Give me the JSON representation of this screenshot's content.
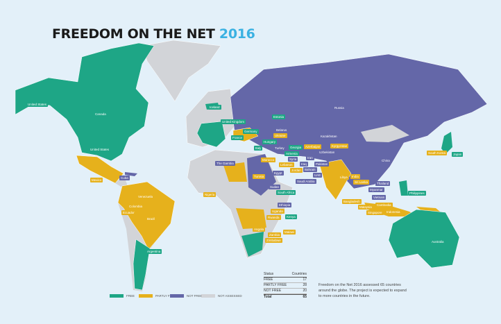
{
  "title": {
    "main": "FREEDOM ON THE NET",
    "year": "2016"
  },
  "colors": {
    "free": "#1ea686",
    "partly_free": "#e6b11c",
    "not_free": "#6467a8",
    "not_assessed": "#d2d4d8",
    "ocean": "#e3f0f9",
    "year": "#3ab1e2"
  },
  "legend": [
    {
      "key": "free",
      "label": "FREE"
    },
    {
      "key": "partly_free",
      "label": "PARTLY FREE"
    },
    {
      "key": "not_free",
      "label": "NOT FREE"
    },
    {
      "key": "not_assessed",
      "label": "NOT ASSESSED"
    }
  ],
  "stats": {
    "header": {
      "status": "Status",
      "countries": "Countries"
    },
    "rows": [
      {
        "status": "FREE",
        "count": "17"
      },
      {
        "status": "PARTLY FREE",
        "count": "28"
      },
      {
        "status": "NOT FREE",
        "count": "20"
      }
    ],
    "total": {
      "status": "Total",
      "count": "65"
    }
  },
  "note": "Freedom on the Net 2016 assessed 65 countries around the globe. The project is expected to expand to more countries in the future.",
  "countries": [
    {
      "name": "United States",
      "status": "free"
    },
    {
      "name": "Canada",
      "status": "free"
    },
    {
      "name": "United States",
      "status": "free"
    },
    {
      "name": "Iceland",
      "status": "free"
    },
    {
      "name": "United Kingdom",
      "status": "free"
    },
    {
      "name": "France",
      "status": "free"
    },
    {
      "name": "Germany",
      "status": "free"
    },
    {
      "name": "Italy",
      "status": "free"
    },
    {
      "name": "Hungary",
      "status": "free"
    },
    {
      "name": "Estonia",
      "status": "free"
    },
    {
      "name": "Georgia",
      "status": "free"
    },
    {
      "name": "Armenia",
      "status": "free"
    },
    {
      "name": "Belarus",
      "status": "not_free"
    },
    {
      "name": "Ukraine",
      "status": "partly_free"
    },
    {
      "name": "Russia",
      "status": "not_free"
    },
    {
      "name": "Kazakhstan",
      "status": "not_free"
    },
    {
      "name": "Azerbaijan",
      "status": "partly_free"
    },
    {
      "name": "Kyrgyzstan",
      "status": "partly_free"
    },
    {
      "name": "Uzbekistan",
      "status": "not_free"
    },
    {
      "name": "Turkey",
      "status": "not_free"
    },
    {
      "name": "Syria",
      "status": "not_free"
    },
    {
      "name": "Lebanon",
      "status": "partly_free"
    },
    {
      "name": "Jordan",
      "status": "partly_free"
    },
    {
      "name": "Iraq",
      "status": "not_free"
    },
    {
      "name": "Iran",
      "status": "not_free"
    },
    {
      "name": "Bahrain",
      "status": "not_free"
    },
    {
      "name": "UAE",
      "status": "not_free"
    },
    {
      "name": "Pakistan",
      "status": "not_free"
    },
    {
      "name": "Saudi Arabia",
      "status": "not_free"
    },
    {
      "name": "Egypt",
      "status": "not_free"
    },
    {
      "name": "Sudan",
      "status": "not_free"
    },
    {
      "name": "Ethiopia",
      "status": "not_free"
    },
    {
      "name": "Kenya",
      "status": "free"
    },
    {
      "name": "Uganda",
      "status": "partly_free"
    },
    {
      "name": "Rwanda",
      "status": "partly_free"
    },
    {
      "name": "Angola",
      "status": "partly_free"
    },
    {
      "name": "Zambia",
      "status": "partly_free"
    },
    {
      "name": "Malawi",
      "status": "partly_free"
    },
    {
      "name": "Zimbabwe",
      "status": "partly_free"
    },
    {
      "name": "South Africa",
      "status": "free"
    },
    {
      "name": "Nigeria",
      "status": "partly_free"
    },
    {
      "name": "The Gambia",
      "status": "not_free"
    },
    {
      "name": "Morocco",
      "status": "partly_free"
    },
    {
      "name": "Tunisia",
      "status": "partly_free"
    },
    {
      "name": "Libya",
      "status": "partly_free"
    },
    {
      "name": "India",
      "status": "partly_free"
    },
    {
      "name": "Bangladesh",
      "status": "partly_free"
    },
    {
      "name": "Sri Lanka",
      "status": "partly_free"
    },
    {
      "name": "Myanmar",
      "status": "not_free"
    },
    {
      "name": "Thailand",
      "status": "not_free"
    },
    {
      "name": "Vietnam",
      "status": "not_free"
    },
    {
      "name": "Cambodia",
      "status": "partly_free"
    },
    {
      "name": "Malaysia",
      "status": "partly_free"
    },
    {
      "name": "Singapore",
      "status": "partly_free"
    },
    {
      "name": "Indonesia",
      "status": "partly_free"
    },
    {
      "name": "Philippines",
      "status": "free"
    },
    {
      "name": "China",
      "status": "not_free"
    },
    {
      "name": "South Korea",
      "status": "partly_free"
    },
    {
      "name": "Japan",
      "status": "free"
    },
    {
      "name": "Australia",
      "status": "free"
    },
    {
      "name": "Mexico",
      "status": "partly_free"
    },
    {
      "name": "Cuba",
      "status": "not_free"
    },
    {
      "name": "Venezuela",
      "status": "partly_free"
    },
    {
      "name": "Colombia",
      "status": "partly_free"
    },
    {
      "name": "Ecuador",
      "status": "partly_free"
    },
    {
      "name": "Brazil",
      "status": "partly_free"
    },
    {
      "name": "Argentina",
      "status": "free"
    }
  ]
}
